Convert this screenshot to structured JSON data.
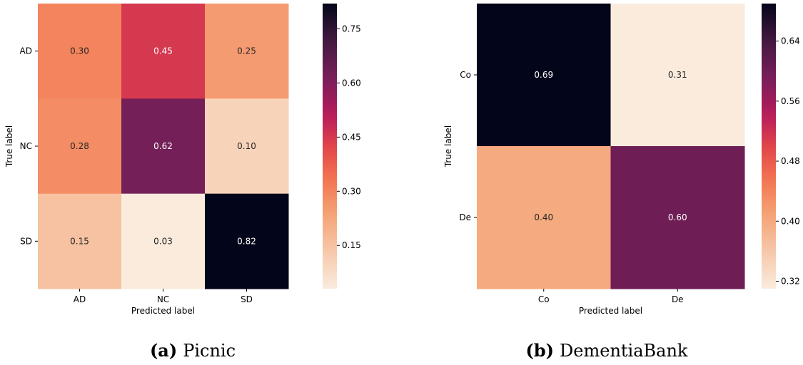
{
  "chart_data": [
    {
      "type": "heatmap",
      "caption_tag": "(a)",
      "caption": "Picnic",
      "xlabel": "Predicted label",
      "ylabel": "True label",
      "x_categories": [
        "AD",
        "NC",
        "SD"
      ],
      "y_categories": [
        "AD",
        "NC",
        "SD"
      ],
      "values": [
        [
          0.3,
          0.45,
          0.25
        ],
        [
          0.28,
          0.62,
          0.1
        ],
        [
          0.15,
          0.03,
          0.82
        ]
      ],
      "value_labels": [
        [
          "0.30",
          "0.45",
          "0.25"
        ],
        [
          "0.28",
          "0.62",
          "0.10"
        ],
        [
          "0.15",
          "0.03",
          "0.82"
        ]
      ],
      "colorbar_range": [
        0.03,
        0.82
      ],
      "colorbar_ticks": [
        0.15,
        0.3,
        0.45,
        0.6,
        0.75
      ],
      "colorbar_tick_labels": [
        "0.15",
        "0.30",
        "0.45",
        "0.60",
        "0.75"
      ],
      "colormap": "rocket_r"
    },
    {
      "type": "heatmap",
      "caption_tag": "(b)",
      "caption": "DementiaBank",
      "xlabel": "Predicted label",
      "ylabel": "True label",
      "x_categories": [
        "Co",
        "De"
      ],
      "y_categories": [
        "Co",
        "De"
      ],
      "values": [
        [
          0.69,
          0.31
        ],
        [
          0.4,
          0.6
        ]
      ],
      "value_labels": [
        [
          "0.69",
          "0.31"
        ],
        [
          "0.40",
          "0.60"
        ]
      ],
      "colorbar_range": [
        0.31,
        0.69
      ],
      "colorbar_ticks": [
        0.32,
        0.4,
        0.48,
        0.56,
        0.64
      ],
      "colorbar_tick_labels": [
        "0.32",
        "0.40",
        "0.48",
        "0.56",
        "0.64"
      ],
      "colormap": "rocket_r"
    }
  ]
}
